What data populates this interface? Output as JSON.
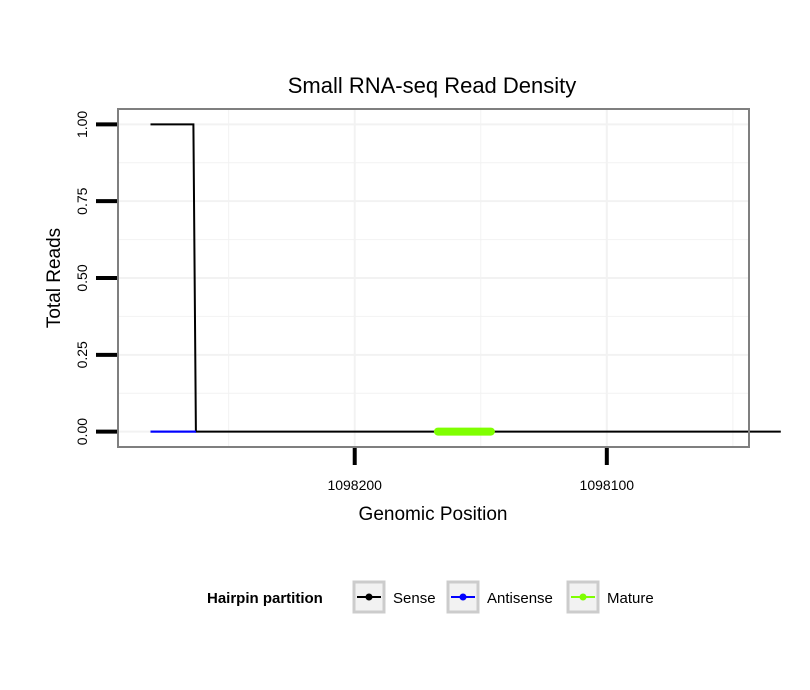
{
  "chart_data": {
    "type": "line",
    "title": "Small RNA-seq Read Density",
    "xlabel": "Genomic Position",
    "ylabel": "Total Reads",
    "x_axis_reversed": true,
    "xlim": [
      1098043.6,
      1098293.9
    ],
    "ylim": [
      -0.05,
      1.05
    ],
    "x_ticks": [
      1098200,
      1098100
    ],
    "x_tick_labels": [
      "1098200",
      "1098100"
    ],
    "y_ticks": [
      0,
      0.25,
      0.5,
      0.75,
      1
    ],
    "y_tick_labels": [
      "0.00",
      "0.25",
      "0.50",
      "0.75",
      "1.00"
    ],
    "grid": true,
    "legend_title": "Hairpin partition",
    "legend_position": "bottom",
    "series": [
      {
        "name": "Sense",
        "color": "#000000",
        "line_width": 2,
        "points": [
          [
            1098281,
            1
          ],
          [
            1098264,
            1
          ],
          [
            1098263,
            0
          ],
          [
            1098031,
            0
          ]
        ]
      },
      {
        "name": "Antisense",
        "color": "#0000ff",
        "line_width": 2,
        "points": [
          [
            1098281,
            0
          ],
          [
            1098263,
            0
          ]
        ]
      },
      {
        "name": "Mature",
        "color": "#7fff00",
        "line_width": 8,
        "points": [
          [
            1098167,
            0
          ],
          [
            1098146,
            0
          ]
        ]
      }
    ]
  }
}
